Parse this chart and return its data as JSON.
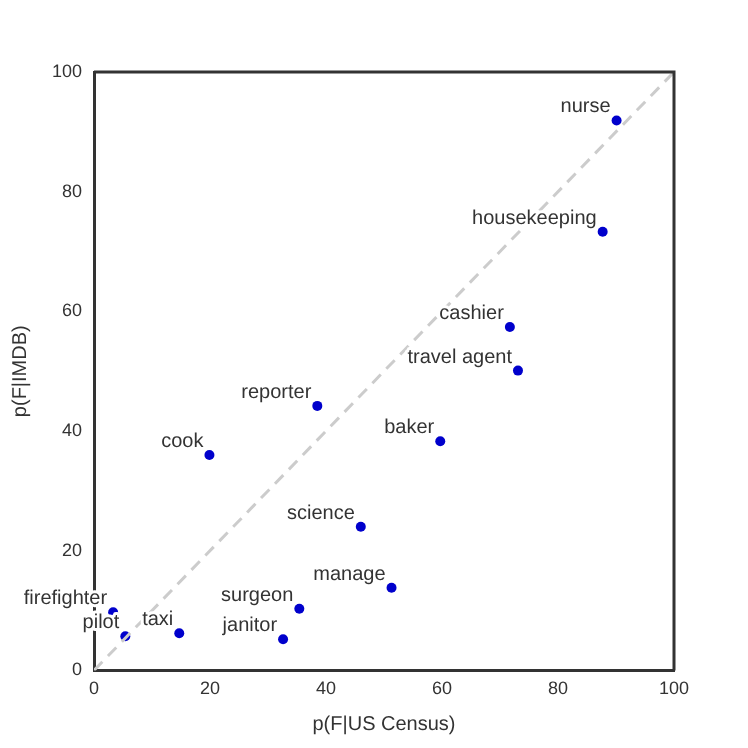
{
  "chart_data": {
    "type": "scatter",
    "xlabel": "p(F|US Census)",
    "ylabel": "p(F|IMDB)",
    "xlim": [
      0,
      100
    ],
    "ylim": [
      0,
      100
    ],
    "xticks": [
      0,
      20,
      40,
      60,
      80,
      100
    ],
    "yticks": [
      0,
      20,
      40,
      60,
      80,
      100
    ],
    "grid": false,
    "legend": false,
    "series": [
      {
        "type": "line",
        "color": "#cccccc",
        "line_style": "dashed",
        "marker": "none",
        "x": [
          0,
          100
        ],
        "values": [
          0,
          100
        ]
      },
      {
        "color": "#0000cc",
        "marker": "circle",
        "x": [
          90.1,
          87.7,
          71.7,
          73.1,
          38.5,
          19.9,
          59.7,
          46.0,
          51.3,
          35.4,
          32.6,
          14.7,
          5.4,
          3.3
        ],
        "values": [
          91.9,
          73.3,
          57.4,
          50.1,
          44.2,
          36,
          38.3,
          24,
          13.8,
          10.3,
          5.2,
          6.2,
          5.7,
          9.7
        ]
      }
    ],
    "annotations": [
      {
        "text": "nurse",
        "x": 90.1,
        "y": 91.9
      },
      {
        "text": "housekeeping",
        "x": 87.7,
        "y": 73.3
      },
      {
        "text": "cashier",
        "x": 71.7,
        "y": 57.4
      },
      {
        "text": "travel agent",
        "x": 73.1,
        "y": 50.1
      },
      {
        "text": "reporter",
        "x": 38.5,
        "y": 44.2
      },
      {
        "text": "cook",
        "x": 19.9,
        "y": 36
      },
      {
        "text": "baker",
        "x": 59.7,
        "y": 38.3
      },
      {
        "text": "science",
        "x": 46.0,
        "y": 24
      },
      {
        "text": "manage",
        "x": 51.3,
        "y": 13.8
      },
      {
        "text": "surgeon",
        "x": 35.4,
        "y": 10.3
      },
      {
        "text": "janitor",
        "x": 32.6,
        "y": 5.2
      },
      {
        "text": "taxi",
        "x": 14.7,
        "y": 6.2
      },
      {
        "text": "pilot",
        "x": 5.4,
        "y": 5.7
      },
      {
        "text": "firefighter",
        "x": 3.3,
        "y": 9.7
      }
    ]
  }
}
